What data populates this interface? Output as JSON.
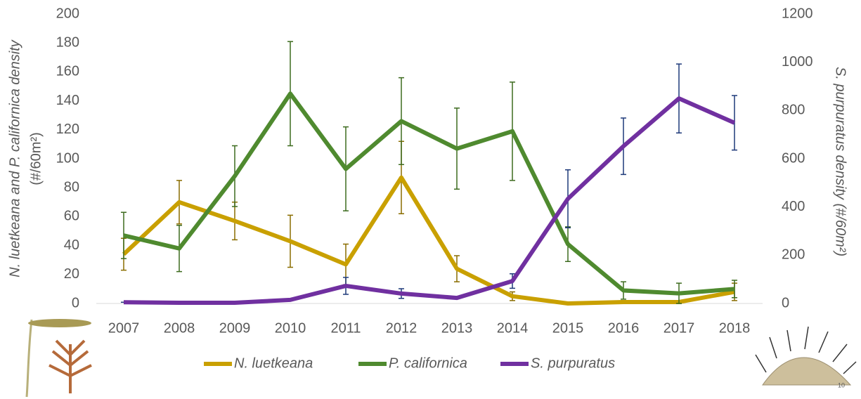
{
  "chart_data": {
    "type": "line",
    "categories": [
      "2007",
      "2008",
      "2009",
      "2010",
      "2011",
      "2012",
      "2013",
      "2014",
      "2015",
      "2016",
      "2017",
      "2018"
    ],
    "ylabel": [
      "N. luetkeana and P. californica density",
      "(#/60m²)"
    ],
    "y2label": "S. purpuratus density (#/60m²)",
    "ylim": [
      0,
      200
    ],
    "yticks": [
      0,
      20,
      40,
      60,
      80,
      100,
      120,
      140,
      160,
      180,
      200
    ],
    "y2lim": [
      0,
      1200
    ],
    "y2ticks": [
      0,
      200,
      400,
      600,
      800,
      1000,
      1200
    ],
    "series": [
      {
        "name": "N. luetkeana",
        "color": "#c9a000",
        "error_color": "#8a6d00",
        "values": [
          34,
          70,
          57,
          43,
          27,
          87,
          24,
          5,
          0,
          1,
          1,
          8
        ],
        "errors": [
          11,
          15,
          13,
          18,
          14,
          25,
          9,
          3,
          0,
          1,
          1,
          6
        ]
      },
      {
        "name": "P. californica",
        "color": "#4f8a2f",
        "error_color": "#3d6b1f",
        "values": [
          47,
          38,
          88,
          145,
          93,
          126,
          107,
          119,
          41,
          9,
          7,
          10
        ],
        "errors": [
          16,
          16,
          21,
          36,
          29,
          30,
          28,
          34,
          12,
          6,
          7,
          6
        ]
      },
      {
        "name": "S. purpuratus",
        "color": "#7030a0",
        "error_color": "#1f3a7a",
        "axis": "y2",
        "values": [
          5,
          3,
          3,
          15,
          73,
          41,
          23,
          93,
          434,
          652,
          850,
          749
        ],
        "errors": [
          0,
          0,
          0,
          0,
          35,
          20,
          0,
          30,
          120,
          117,
          143,
          113
        ]
      }
    ],
    "page_number": "10"
  }
}
